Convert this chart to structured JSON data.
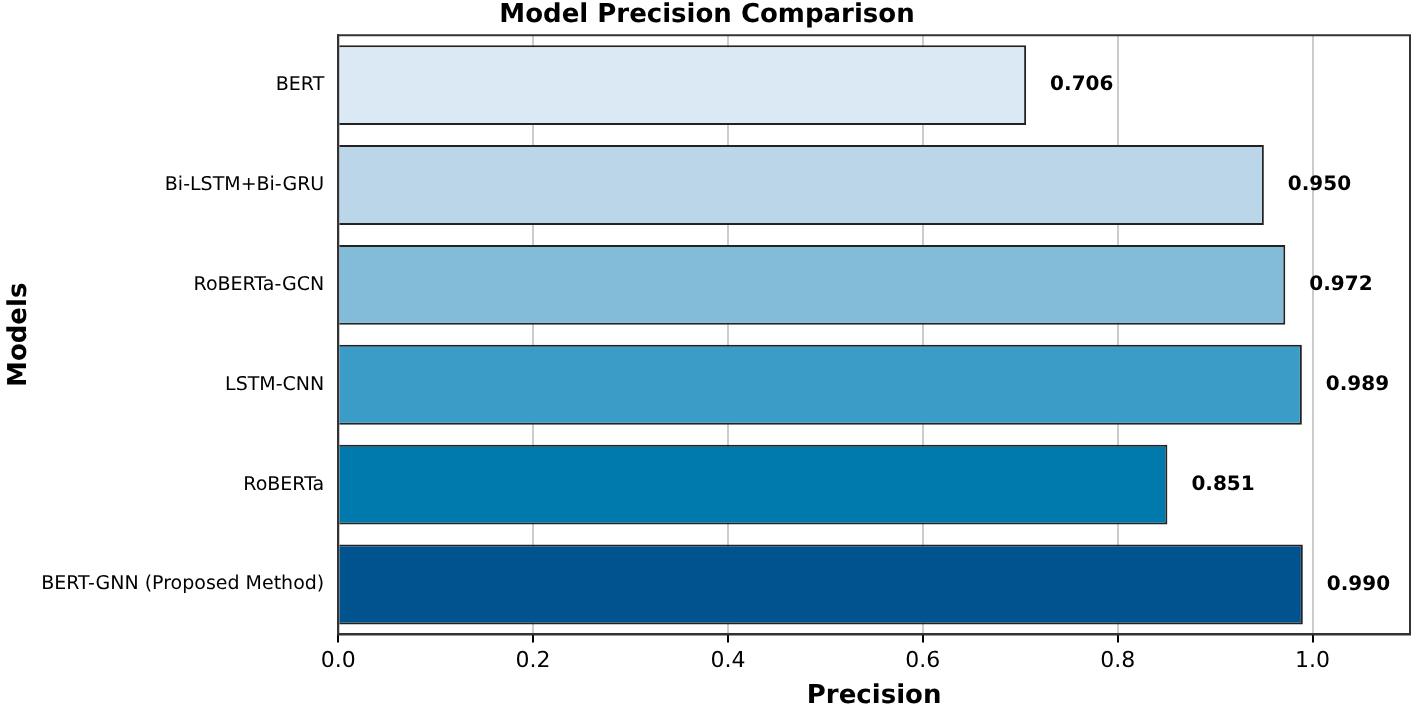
{
  "chart_data": {
    "type": "bar",
    "orientation": "horizontal",
    "title": "Model Precision Comparison",
    "xlabel": "Precision",
    "ylabel": "Models",
    "categories": [
      "BERT",
      "Bi-LSTM+Bi-GRU",
      "RoBERTa-GCN",
      "LSTM-CNN",
      "RoBERTa",
      "BERT-GNN (Proposed Method)"
    ],
    "values": [
      0.706,
      0.95,
      0.972,
      0.989,
      0.851,
      0.99
    ],
    "colors": [
      "#dbe9f5",
      "#bad6e8",
      "#83bcd8",
      "#3b9cc7",
      "#0079ad",
      "#00538f"
    ],
    "value_labels": [
      "0.706",
      "0.950",
      "0.972",
      "0.989",
      "0.851",
      "0.990"
    ],
    "xlim": [
      0,
      1.1
    ],
    "xticks": [
      {
        "value": 0,
        "label": "0.0"
      },
      {
        "value": 0.2,
        "label": "0.2"
      },
      {
        "value": 0.4,
        "label": "0.4"
      },
      {
        "value": 0.6,
        "label": "0.6"
      },
      {
        "value": 0.8,
        "label": "0.8"
      },
      {
        "value": 1,
        "label": "1.0"
      }
    ],
    "grid": "x",
    "legend": false
  }
}
